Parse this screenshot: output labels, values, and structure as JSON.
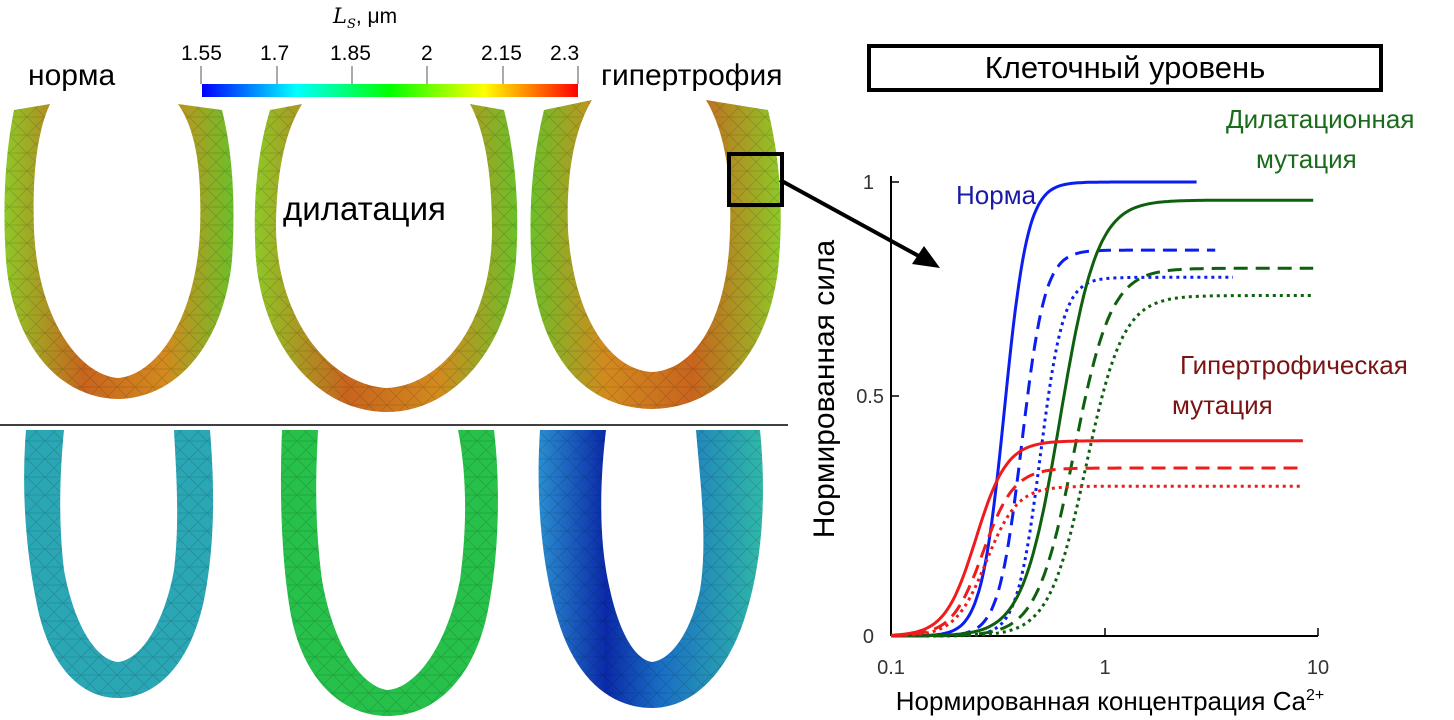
{
  "colorbar": {
    "symbol": "L",
    "subscript": "S",
    "unit": ", μm",
    "ticks": [
      "1.55",
      "1.7",
      "1.85",
      "2",
      "2.15",
      "2.3"
    ],
    "range": [
      1.55,
      2.3
    ],
    "colors": [
      "#0000ff",
      "#00ffff",
      "#00ff00",
      "#ffff00",
      "#ff0000"
    ]
  },
  "labels": {
    "norm": "норма",
    "dilation": "дилатация",
    "hypertrophy": "гипертрофия",
    "cell_level": "Клеточный уровень"
  },
  "ventricle_colors": {
    "top_row": {
      "inner": "#3fbe2a",
      "band": "#c8641e",
      "outer": "#8ec828"
    },
    "bottom_row_norm": "#2aa6b4",
    "bottom_row_dilation": "#26c04a",
    "bottom_row_hypertrophy": "#1a3fb4"
  },
  "chart_data": {
    "type": "line",
    "xscale": "log",
    "xlim": [
      0.1,
      10
    ],
    "ylim": [
      0,
      1
    ],
    "xticks": [
      0.1,
      1,
      10
    ],
    "xtick_labels": [
      "0.1",
      "1",
      "10"
    ],
    "yticks": [
      0,
      0.5,
      1
    ],
    "ytick_labels": [
      "0",
      "0.5",
      "1"
    ],
    "xlabel": "Нормированная концентрация Ca",
    "xlabel_sup": "2+",
    "ylabel": "Нормированная сила",
    "annotations": [
      {
        "text": "Норма",
        "color": "#1a1aa6"
      },
      {
        "text": "Дилатационная",
        "color": "#1a6b1a"
      },
      {
        "text": "мутация",
        "color": "#1a6b1a"
      },
      {
        "text": "Гипертрофическая",
        "color": "#7a1414"
      },
      {
        "text": "мутация",
        "color": "#7a1414"
      }
    ],
    "series": [
      {
        "group": "norm",
        "style": "solid",
        "color": "#0b1ef0",
        "fmax": 1.0,
        "ec50": 0.34,
        "n": 8,
        "xmax": 2.7
      },
      {
        "group": "norm",
        "style": "dashed",
        "color": "#0b1ef0",
        "fmax": 0.85,
        "ec50": 0.41,
        "n": 8,
        "xmax": 3.3
      },
      {
        "group": "norm",
        "style": "dotted",
        "color": "#0b1ef0",
        "fmax": 0.79,
        "ec50": 0.5,
        "n": 8,
        "xmax": 4.0
      },
      {
        "group": "dilation",
        "style": "solid",
        "color": "#0e600e",
        "fmax": 0.96,
        "ec50": 0.62,
        "n": 5,
        "xmax": 9.5
      },
      {
        "group": "dilation",
        "style": "dashed",
        "color": "#0e600e",
        "fmax": 0.81,
        "ec50": 0.72,
        "n": 5,
        "xmax": 9.5
      },
      {
        "group": "dilation",
        "style": "dotted",
        "color": "#0e600e",
        "fmax": 0.75,
        "ec50": 0.82,
        "n": 5,
        "xmax": 9.5
      },
      {
        "group": "hypertrophy",
        "style": "solid",
        "color": "#ee1c1c",
        "fmax": 0.43,
        "ec50": 0.25,
        "n": 6,
        "xmax": 8.5
      },
      {
        "group": "hypertrophy",
        "style": "dashed",
        "color": "#ee1c1c",
        "fmax": 0.37,
        "ec50": 0.27,
        "n": 6,
        "xmax": 8.5
      },
      {
        "group": "hypertrophy",
        "style": "dotted",
        "color": "#ee1c1c",
        "fmax": 0.33,
        "ec50": 0.28,
        "n": 6,
        "xmax": 8.5
      }
    ]
  }
}
